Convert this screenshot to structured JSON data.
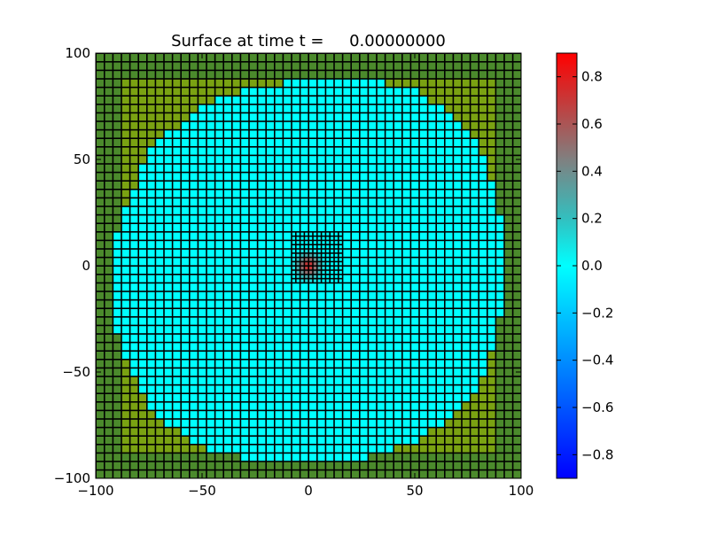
{
  "chart_data": {
    "type": "heatmap",
    "title": "Surface at time t =     0.00000000",
    "xlabel": "",
    "ylabel": "",
    "xlim": [
      -100,
      100
    ],
    "ylim": [
      -100,
      100
    ],
    "x_ticks": [
      -100,
      -50,
      0,
      50,
      100
    ],
    "y_ticks": [
      -100,
      -50,
      0,
      50,
      100
    ],
    "x_tick_labels": [
      "−100",
      "−50",
      "0",
      "50",
      "100"
    ],
    "y_tick_labels": [
      "−100",
      "−50",
      "0",
      "50",
      "100"
    ],
    "grid": false,
    "coarse_cell_size": 4,
    "fine_cell_size": 2,
    "fine_region": {
      "x": [
        -8,
        16
      ],
      "y": [
        -8,
        16
      ]
    },
    "surface": {
      "land_color": "#7aa212",
      "land_dark_color": "#4b8a2c",
      "water_color": "#00ffff",
      "water_boundary_points": [
        [
          -92,
          0
        ],
        [
          -90,
          -30
        ],
        [
          -84,
          -50
        ],
        [
          -76,
          -64
        ],
        [
          -64,
          -76
        ],
        [
          -48,
          -86
        ],
        [
          -24,
          -92
        ],
        [
          0,
          -92
        ],
        [
          24,
          -92
        ],
        [
          48,
          -84
        ],
        [
          68,
          -72
        ],
        [
          80,
          -56
        ],
        [
          88,
          -36
        ],
        [
          92,
          -16
        ],
        [
          92,
          0
        ],
        [
          92,
          16
        ],
        [
          88,
          36
        ],
        [
          80,
          56
        ],
        [
          68,
          72
        ],
        [
          48,
          84
        ],
        [
          24,
          88
        ],
        [
          0,
          88
        ],
        [
          -24,
          84
        ],
        [
          -48,
          76
        ],
        [
          -64,
          64
        ],
        [
          -76,
          52
        ],
        [
          -84,
          32
        ],
        [
          -90,
          16
        ]
      ],
      "hump_center": [
        0,
        0
      ],
      "hump_peak_value": 0.75,
      "hump_radius": 8
    },
    "colorbar": {
      "range": [
        -0.9,
        0.9
      ],
      "ticks": [
        0.8,
        0.6,
        0.4,
        0.2,
        0.0,
        -0.2,
        -0.4,
        -0.6,
        -0.8
      ],
      "tick_labels": [
        "0.8",
        "0.6",
        "0.4",
        "0.2",
        "0.0",
        "−0.2",
        "−0.4",
        "−0.6",
        "−0.8"
      ],
      "colormap_stops": [
        {
          "value": -0.9,
          "color": "#0000ff"
        },
        {
          "value": 0.0,
          "color": "#00ffff"
        },
        {
          "value": 0.2,
          "color": "#33bfbf"
        },
        {
          "value": 0.45,
          "color": "#808080"
        },
        {
          "value": 0.9,
          "color": "#ff0000"
        }
      ]
    }
  }
}
